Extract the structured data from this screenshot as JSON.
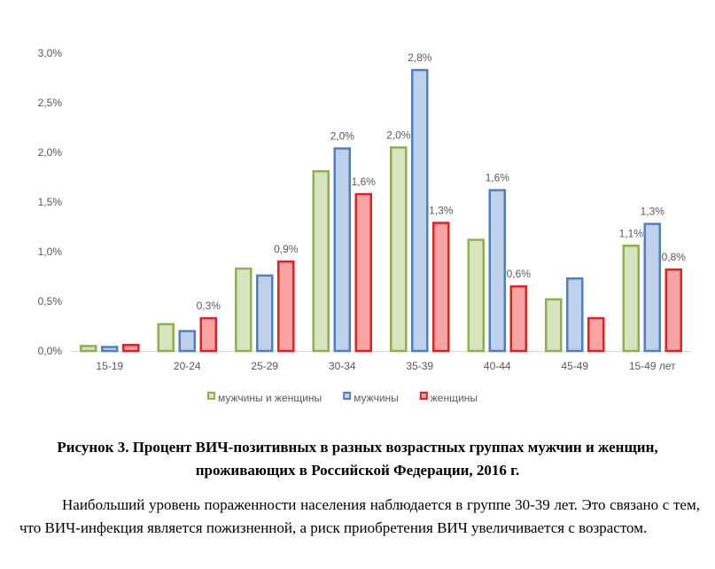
{
  "chart_data": {
    "type": "bar",
    "categories": [
      "15-19",
      "20-24",
      "25-29",
      "30-34",
      "35-39",
      "40-44",
      "45-49",
      "15-49 лет"
    ],
    "series": [
      {
        "name": "мужчины и женщины",
        "values": [
          0.05,
          0.27,
          0.83,
          1.81,
          2.05,
          1.12,
          0.52,
          1.06
        ],
        "labels": [
          "",
          "",
          "",
          "",
          "2,0%",
          "",
          "",
          "1,1%"
        ],
        "fill": "#d7e4bd",
        "stroke": "#8fb04e"
      },
      {
        "name": "мужчины",
        "values": [
          0.04,
          0.2,
          0.76,
          2.04,
          2.83,
          1.62,
          0.73,
          1.28
        ],
        "labels": [
          "",
          "",
          "",
          "2,0%",
          "2,8%",
          "1,6%",
          "",
          "1,3%"
        ],
        "fill": "#bfd1ea",
        "stroke": "#4f7fc0"
      },
      {
        "name": "женщины",
        "values": [
          0.06,
          0.33,
          0.9,
          1.58,
          1.29,
          0.65,
          0.33,
          0.82
        ],
        "labels": [
          "",
          "0,3%",
          "0,9%",
          "1,6%",
          "1,3%",
          "0,6%",
          "",
          "0,8%"
        ],
        "fill": "#f8a4a4",
        "stroke": "#e31f1f"
      }
    ],
    "yticks": [
      "0,0%",
      "0,5%",
      "1,0%",
      "1,5%",
      "2,0%",
      "2,5%",
      "3,0%"
    ],
    "ylim": [
      0,
      3.0
    ],
    "legend_position": "bottom",
    "grid": false
  },
  "caption": "Рисунок 3. Процент ВИЧ-позитивных в разных возрастных группах мужчин и женщин, проживающих в Российской Федерации, 2016 г.",
  "paragraph": "Наибольший уровень пораженности населения наблюдается в группе 30-39 лет. Это связано с тем, что ВИЧ-инфекция является пожизненной, а риск приобретения ВИЧ увеличивается с возрастом."
}
